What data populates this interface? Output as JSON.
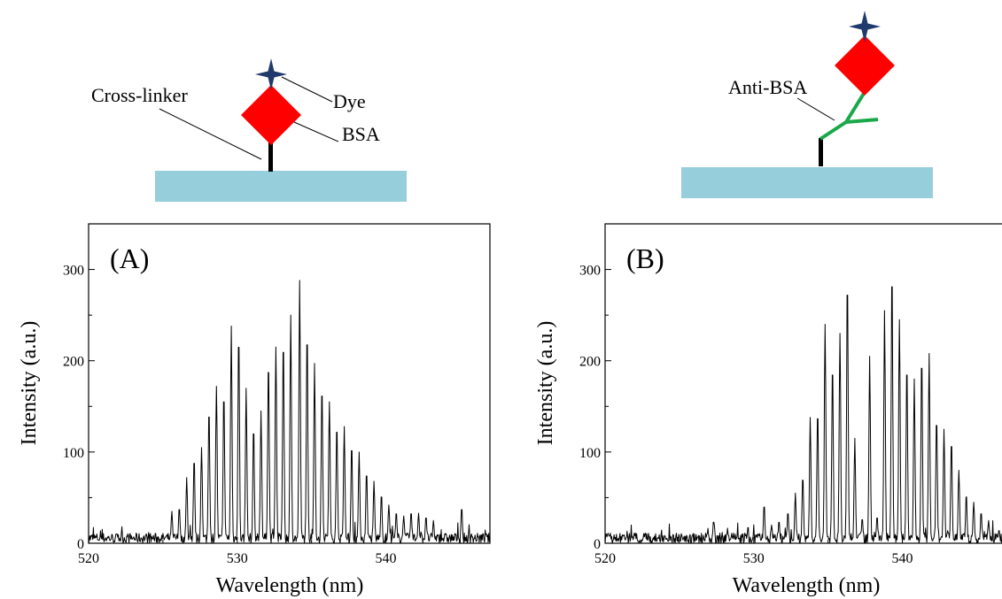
{
  "schematic_a": {
    "labels": {
      "cross_linker": "Cross-linker",
      "dye": "Dye",
      "bsa": "BSA"
    },
    "colors": {
      "substrate": "#96cedb",
      "protein": "#ff0000",
      "dye": "#1f3a6b",
      "linker": "#000000"
    }
  },
  "schematic_b": {
    "labels": {
      "anti_bsa": "Anti-BSA"
    },
    "colors": {
      "substrate": "#96cedb",
      "protein": "#ff0000",
      "dye": "#1f3a6b",
      "antibody": "#1aa84a",
      "linker": "#000000"
    }
  },
  "chart_data": [
    {
      "type": "line",
      "panel_label": "(A)",
      "xlabel": "Wavelength (nm)",
      "ylabel": "Intensity (a.u.)",
      "xlim": [
        520,
        547
      ],
      "ylim": [
        0,
        350
      ],
      "xticks": [
        520,
        530,
        540
      ],
      "yticks": [
        0,
        100,
        200,
        300
      ],
      "grid": false,
      "line_color": "#000000",
      "baseline_noise": 8,
      "peaks": [
        {
          "x": 525.6,
          "y": 35
        },
        {
          "x": 526.1,
          "y": 40
        },
        {
          "x": 526.6,
          "y": 72
        },
        {
          "x": 527.1,
          "y": 95
        },
        {
          "x": 527.6,
          "y": 105
        },
        {
          "x": 528.1,
          "y": 150
        },
        {
          "x": 528.6,
          "y": 172
        },
        {
          "x": 529.1,
          "y": 168
        },
        {
          "x": 529.6,
          "y": 238
        },
        {
          "x": 530.1,
          "y": 233
        },
        {
          "x": 530.6,
          "y": 170
        },
        {
          "x": 531.1,
          "y": 130
        },
        {
          "x": 531.6,
          "y": 145
        },
        {
          "x": 532.1,
          "y": 203
        },
        {
          "x": 532.6,
          "y": 215
        },
        {
          "x": 533.1,
          "y": 227
        },
        {
          "x": 533.6,
          "y": 250
        },
        {
          "x": 534.2,
          "y": 288
        },
        {
          "x": 534.7,
          "y": 236
        },
        {
          "x": 535.2,
          "y": 197
        },
        {
          "x": 535.7,
          "y": 175
        },
        {
          "x": 536.2,
          "y": 155
        },
        {
          "x": 536.7,
          "y": 132
        },
        {
          "x": 537.2,
          "y": 128
        },
        {
          "x": 537.7,
          "y": 110
        },
        {
          "x": 538.2,
          "y": 100
        },
        {
          "x": 538.7,
          "y": 80
        },
        {
          "x": 539.2,
          "y": 68
        },
        {
          "x": 539.7,
          "y": 55
        },
        {
          "x": 540.2,
          "y": 42
        },
        {
          "x": 540.7,
          "y": 35
        },
        {
          "x": 541.2,
          "y": 30
        },
        {
          "x": 541.7,
          "y": 35
        },
        {
          "x": 542.2,
          "y": 33
        },
        {
          "x": 542.7,
          "y": 30
        },
        {
          "x": 543.2,
          "y": 25
        },
        {
          "x": 545.1,
          "y": 40
        }
      ]
    },
    {
      "type": "line",
      "panel_label": "(B)",
      "xlabel": "Wavelength (nm)",
      "ylabel": "Intensity (a.u.)",
      "xlim": [
        520,
        547
      ],
      "ylim": [
        0,
        350
      ],
      "xticks": [
        520,
        530,
        540
      ],
      "yticks": [
        0,
        100,
        200,
        300
      ],
      "grid": false,
      "line_color": "#000000",
      "baseline_noise": 8,
      "peaks": [
        {
          "x": 527.3,
          "y": 25
        },
        {
          "x": 530.7,
          "y": 43
        },
        {
          "x": 531.2,
          "y": 20
        },
        {
          "x": 531.7,
          "y": 25
        },
        {
          "x": 532.3,
          "y": 35
        },
        {
          "x": 532.8,
          "y": 55
        },
        {
          "x": 533.3,
          "y": 75
        },
        {
          "x": 533.8,
          "y": 138
        },
        {
          "x": 534.3,
          "y": 148
        },
        {
          "x": 534.8,
          "y": 240
        },
        {
          "x": 535.3,
          "y": 200
        },
        {
          "x": 535.8,
          "y": 230
        },
        {
          "x": 536.3,
          "y": 295
        },
        {
          "x": 536.8,
          "y": 115
        },
        {
          "x": 537.3,
          "y": 28
        },
        {
          "x": 537.8,
          "y": 205
        },
        {
          "x": 538.3,
          "y": 30
        },
        {
          "x": 538.8,
          "y": 255
        },
        {
          "x": 539.3,
          "y": 305
        },
        {
          "x": 539.8,
          "y": 245
        },
        {
          "x": 540.3,
          "y": 200
        },
        {
          "x": 540.8,
          "y": 180
        },
        {
          "x": 541.3,
          "y": 208
        },
        {
          "x": 541.8,
          "y": 208
        },
        {
          "x": 542.3,
          "y": 140
        },
        {
          "x": 542.8,
          "y": 125
        },
        {
          "x": 543.3,
          "y": 115
        },
        {
          "x": 543.8,
          "y": 80
        },
        {
          "x": 544.3,
          "y": 55
        },
        {
          "x": 544.8,
          "y": 45
        },
        {
          "x": 545.3,
          "y": 35
        },
        {
          "x": 545.8,
          "y": 25
        },
        {
          "x": 546.5,
          "y": 15
        }
      ]
    }
  ]
}
